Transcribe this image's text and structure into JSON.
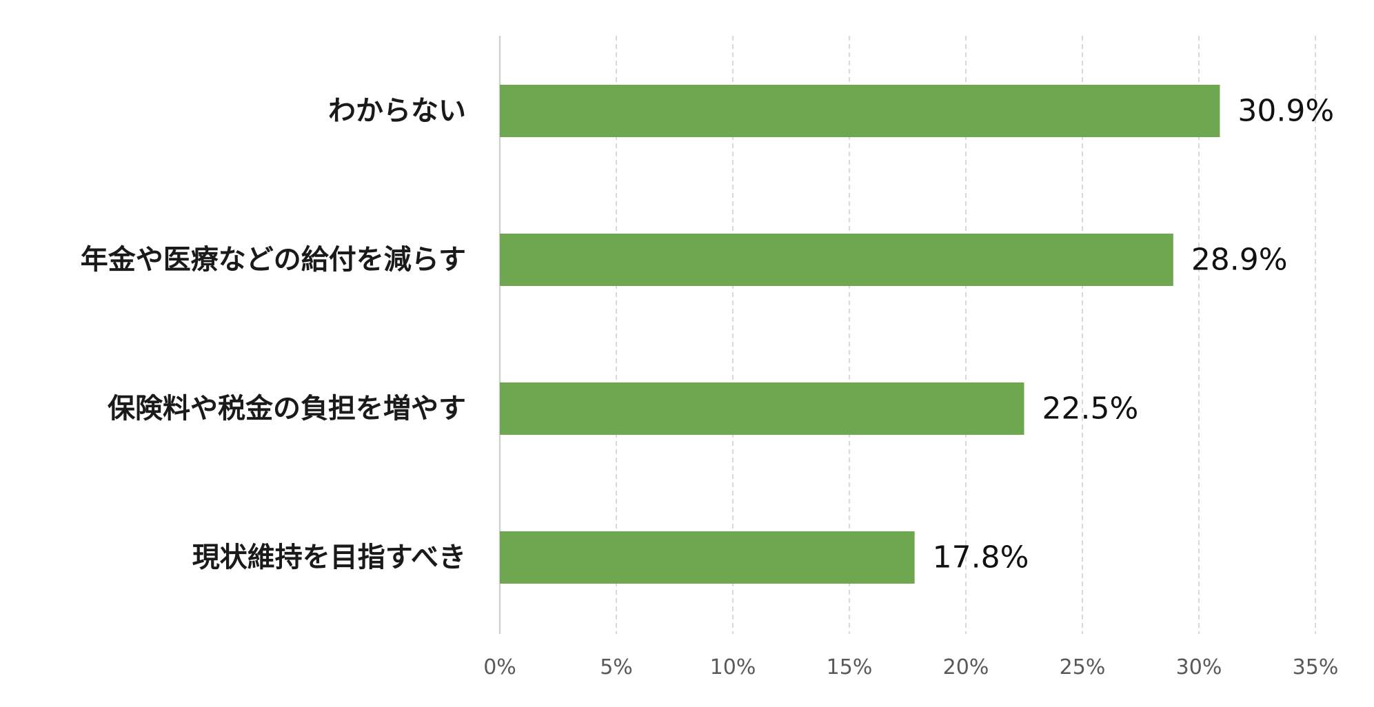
{
  "chart_data": {
    "type": "bar",
    "orientation": "horizontal",
    "categories": [
      "わからない",
      "年金や医療などの給付を減らす",
      "保険料や税金の負担を増やす",
      "現状維持を目指すべき"
    ],
    "values": [
      30.9,
      28.9,
      22.5,
      17.8
    ],
    "data_labels": [
      "30.9%",
      "28.9%",
      "22.5%",
      "17.8%"
    ],
    "xlim": [
      0,
      35
    ],
    "x_ticks": [
      0,
      5,
      10,
      15,
      20,
      25,
      30,
      35
    ],
    "x_tick_labels": [
      "0%",
      "5%",
      "10%",
      "15%",
      "20%",
      "25%",
      "30%",
      "35%"
    ],
    "grid": true,
    "legend": "none",
    "colors": {
      "bar": "#6ea74f",
      "grid": "#d0d0d0",
      "tick_text": "#595959",
      "label_text": "#1a1a1a"
    }
  }
}
